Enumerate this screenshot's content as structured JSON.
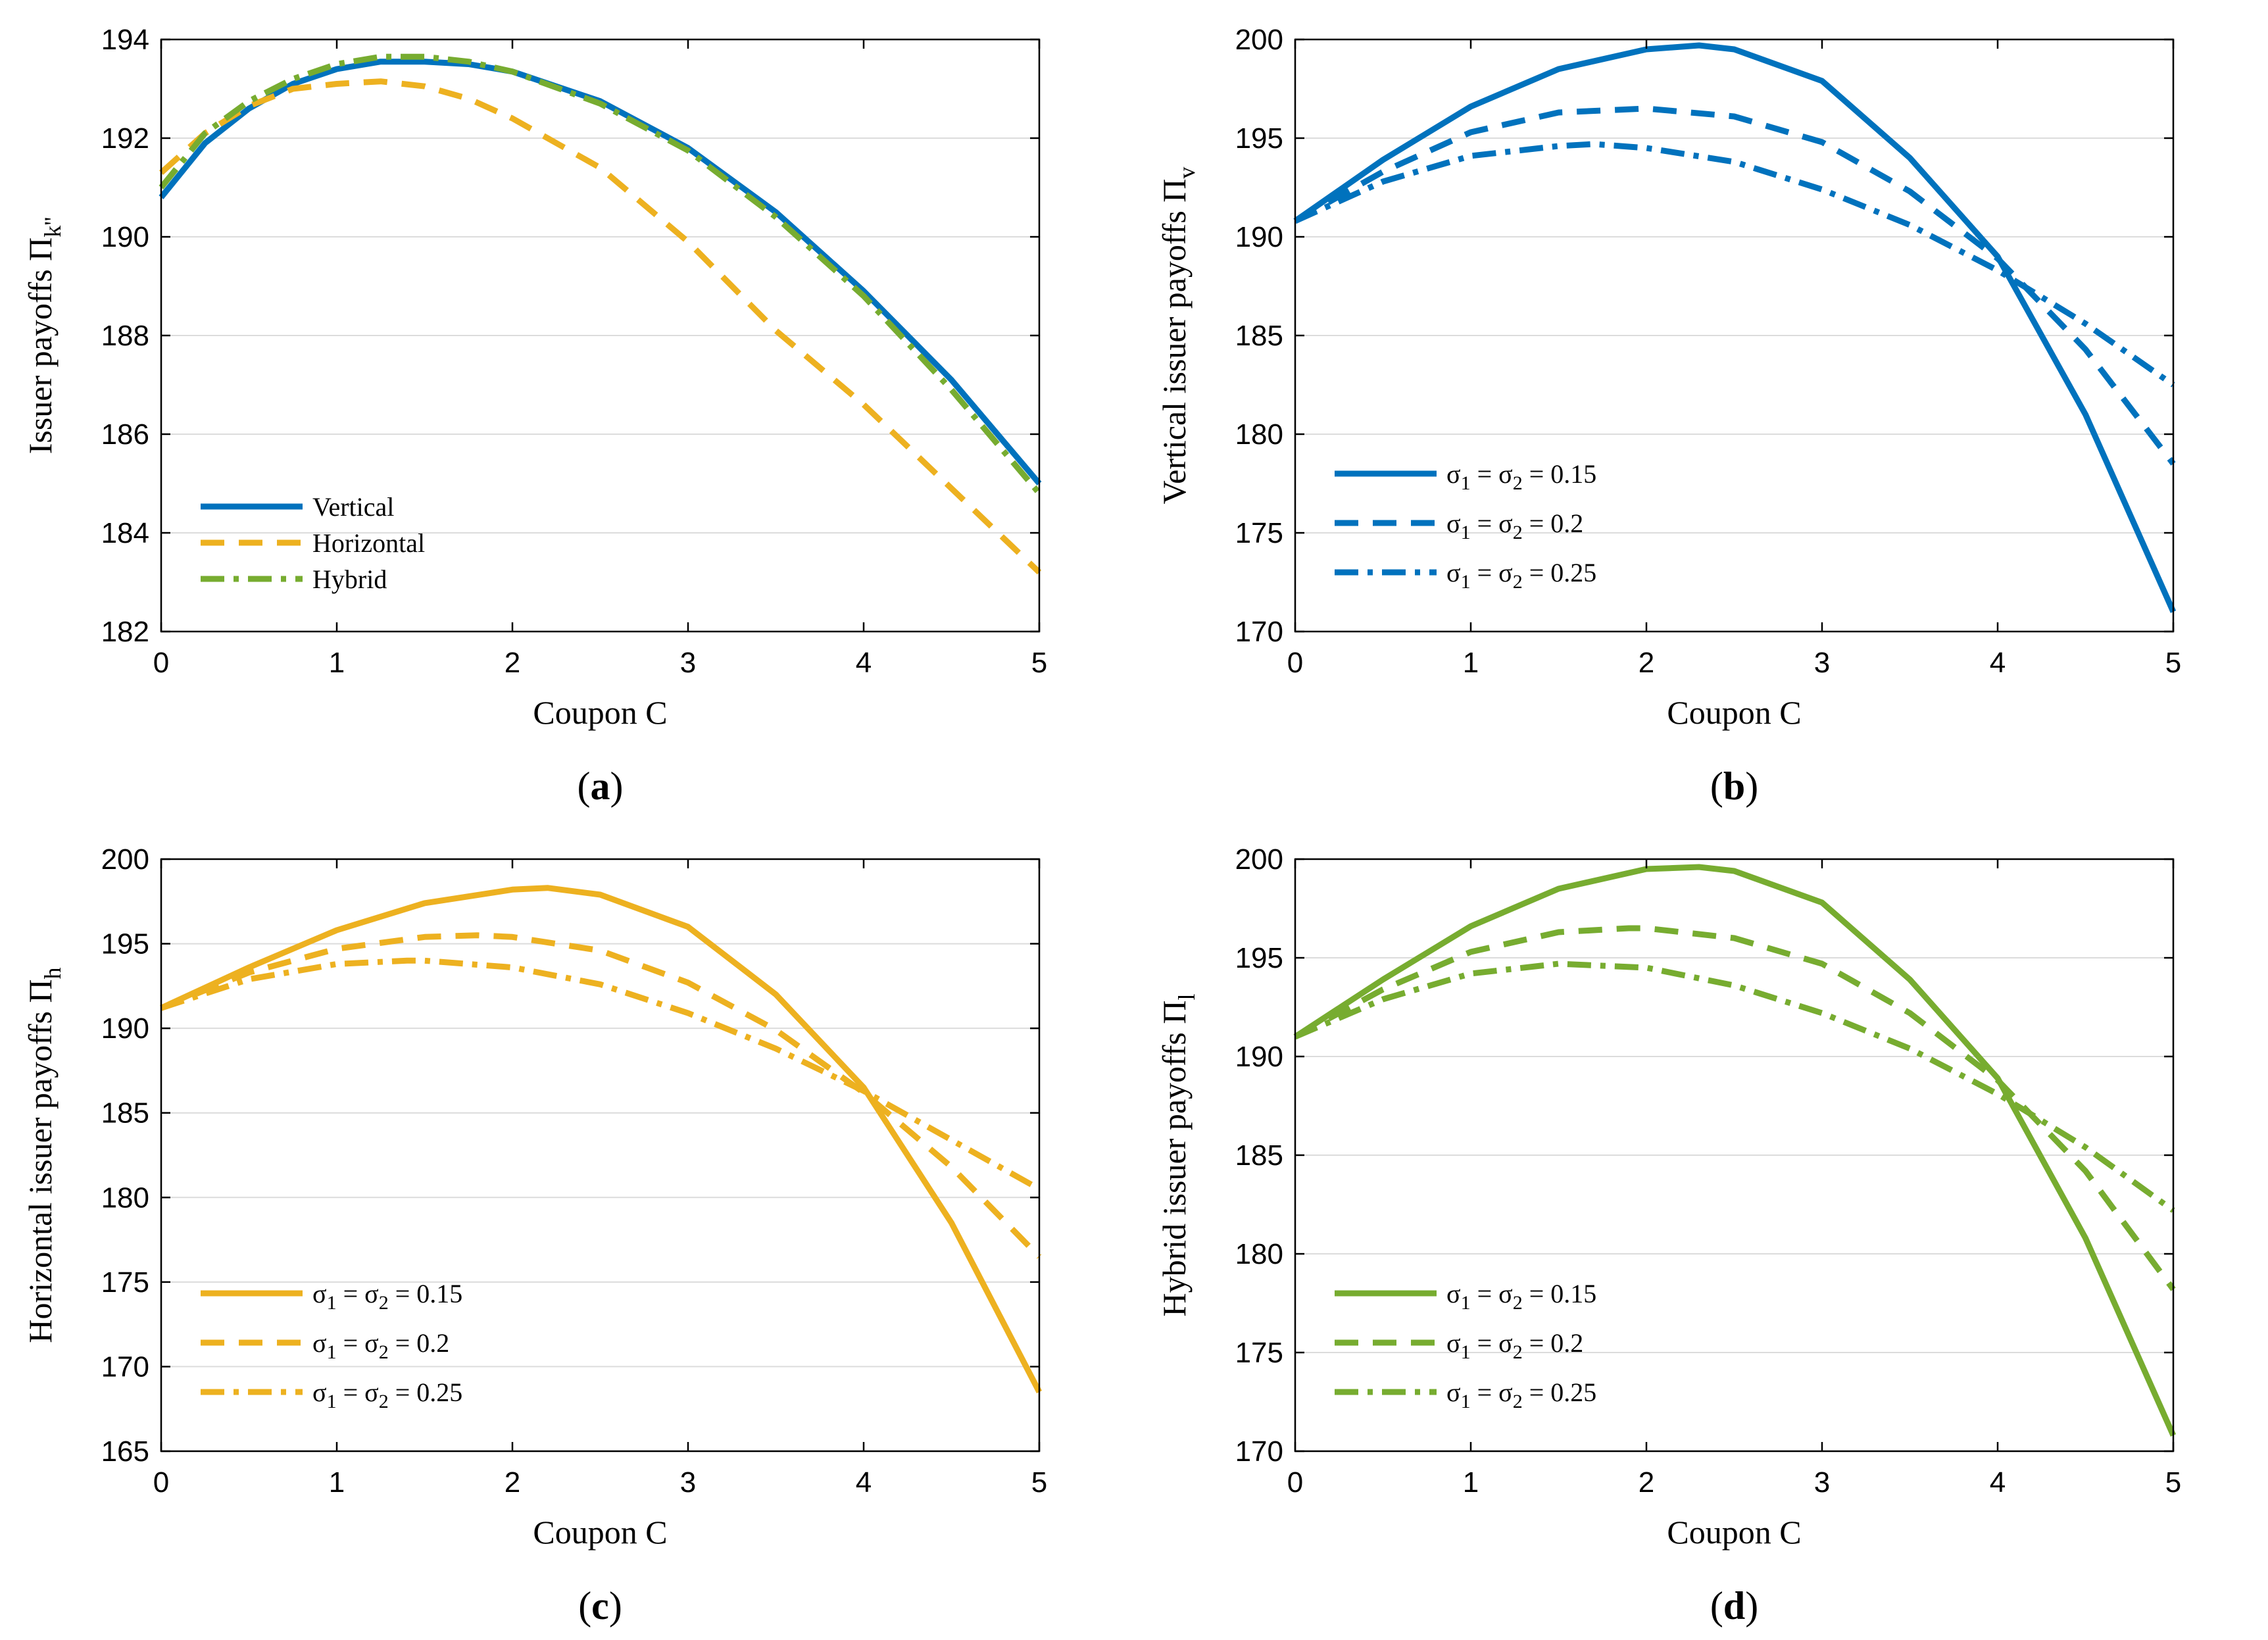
{
  "figure": {
    "colors": {
      "blue": "#0072BD",
      "yellow": "#EDB120",
      "green": "#77AC30",
      "grid": "#dcdcdc"
    }
  },
  "chart_data": [
    {
      "panel_label": "a",
      "type": "line",
      "xlabel": "Coupon  C",
      "ylabel": "Issuer  payoffs  Π",
      "ylabel_sub": "k''",
      "xlim": [
        0,
        5
      ],
      "ylim": [
        182,
        194
      ],
      "xticks": [
        0,
        1,
        2,
        3,
        4,
        5
      ],
      "yticks": [
        182,
        184,
        186,
        188,
        190,
        192,
        194
      ],
      "legend_position": "bottom-left",
      "series": [
        {
          "name": "Vertical",
          "color": "#0072BD",
          "dash": "solid",
          "x": [
            0,
            0.25,
            0.5,
            0.75,
            1,
            1.25,
            1.5,
            1.75,
            2,
            2.5,
            3,
            3.5,
            4,
            4.5,
            5
          ],
          "y": [
            190.8,
            191.9,
            192.6,
            193.1,
            193.4,
            193.55,
            193.55,
            193.5,
            193.35,
            192.75,
            191.8,
            190.5,
            188.9,
            187.1,
            185.0
          ]
        },
        {
          "name": "Horizontal",
          "color": "#EDB120",
          "dash": "dash",
          "x": [
            0,
            0.25,
            0.5,
            0.75,
            1,
            1.25,
            1.5,
            1.75,
            2,
            2.5,
            3,
            3.5,
            4,
            4.5,
            5
          ],
          "y": [
            191.3,
            192.1,
            192.65,
            193.0,
            193.1,
            193.15,
            193.05,
            192.8,
            192.4,
            191.4,
            189.9,
            188.1,
            186.6,
            184.9,
            183.2
          ]
        },
        {
          "name": "Hybrid",
          "color": "#77AC30",
          "dash": "dashdot",
          "x": [
            0,
            0.25,
            0.5,
            0.75,
            1,
            1.25,
            1.5,
            1.75,
            2,
            2.5,
            3,
            3.5,
            4,
            4.5,
            5
          ],
          "y": [
            191.0,
            192.1,
            192.75,
            193.2,
            193.5,
            193.65,
            193.65,
            193.55,
            193.35,
            192.7,
            191.75,
            190.4,
            188.8,
            186.9,
            184.8
          ]
        }
      ]
    },
    {
      "panel_label": "b",
      "type": "line",
      "xlabel": "Coupon  C",
      "ylabel": "Vertical  issuer  payoffs  Π",
      "ylabel_sub": "v",
      "xlim": [
        0,
        5
      ],
      "ylim": [
        170,
        200
      ],
      "xticks": [
        0,
        1,
        2,
        3,
        4,
        5
      ],
      "yticks": [
        170,
        175,
        180,
        185,
        190,
        195,
        200
      ],
      "legend_position": "bottom-left",
      "series": [
        {
          "name": "σ1 = σ2 = 0.15",
          "color": "#0072BD",
          "dash": "solid",
          "x": [
            0,
            0.5,
            1,
            1.5,
            2,
            2.3,
            2.5,
            3,
            3.5,
            4,
            4.5,
            5
          ],
          "y": [
            190.8,
            193.9,
            196.6,
            198.5,
            199.5,
            199.7,
            199.5,
            197.9,
            194.0,
            189.0,
            181.0,
            171.0
          ]
        },
        {
          "name": "σ1 = σ2 = 0.2",
          "color": "#0072BD",
          "dash": "dash",
          "x": [
            0,
            0.5,
            1,
            1.5,
            2,
            2.5,
            3,
            3.5,
            4,
            4.5,
            5
          ],
          "y": [
            190.8,
            193.3,
            195.3,
            196.3,
            196.5,
            196.1,
            194.8,
            192.3,
            188.9,
            184.3,
            178.5
          ]
        },
        {
          "name": "σ1 = σ2 = 0.25",
          "color": "#0072BD",
          "dash": "dashdot",
          "x": [
            0,
            0.5,
            1,
            1.5,
            1.7,
            2,
            2.5,
            3,
            3.5,
            4,
            4.5,
            5
          ],
          "y": [
            190.8,
            192.8,
            194.1,
            194.6,
            194.7,
            194.5,
            193.8,
            192.4,
            190.6,
            188.3,
            185.6,
            182.5
          ]
        }
      ]
    },
    {
      "panel_label": "c",
      "type": "line",
      "xlabel": "Coupon  C",
      "ylabel": "Horizontal  issuer  payoffs  Π",
      "ylabel_sub": "h",
      "xlim": [
        0,
        5
      ],
      "ylim": [
        165,
        200
      ],
      "xticks": [
        0,
        1,
        2,
        3,
        4,
        5
      ],
      "yticks": [
        165,
        170,
        175,
        180,
        185,
        190,
        195,
        200
      ],
      "legend_position": "bottom-left",
      "series": [
        {
          "name": "σ1 = σ2 = 0.15",
          "color": "#EDB120",
          "dash": "solid",
          "x": [
            0,
            0.5,
            1,
            1.5,
            2,
            2.2,
            2.5,
            3,
            3.5,
            4,
            4.5,
            5
          ],
          "y": [
            191.2,
            193.6,
            195.8,
            197.4,
            198.2,
            198.3,
            197.9,
            196.0,
            192.0,
            186.5,
            178.5,
            168.5
          ]
        },
        {
          "name": "σ1 = σ2 = 0.2",
          "color": "#EDB120",
          "dash": "dash",
          "x": [
            0,
            0.5,
            1,
            1.5,
            1.8,
            2,
            2.5,
            3,
            3.5,
            4,
            4.5,
            5
          ],
          "y": [
            191.2,
            193.3,
            194.7,
            195.4,
            195.5,
            195.4,
            194.6,
            192.7,
            189.9,
            186.2,
            181.8,
            176.5
          ]
        },
        {
          "name": "σ1 = σ2 = 0.25",
          "color": "#EDB120",
          "dash": "dashdot",
          "x": [
            0,
            0.5,
            1,
            1.4,
            1.5,
            2,
            2.5,
            3,
            3.5,
            4,
            4.5,
            5
          ],
          "y": [
            191.2,
            192.9,
            193.8,
            194.0,
            194.0,
            193.6,
            192.6,
            190.9,
            188.8,
            186.3,
            183.4,
            180.5
          ]
        }
      ]
    },
    {
      "panel_label": "d",
      "type": "line",
      "xlabel": "Coupon  C",
      "ylabel": "Hybrid  issuer  payoffs  Π",
      "ylabel_sub": "l",
      "xlim": [
        0,
        5
      ],
      "ylim": [
        170,
        200
      ],
      "xticks": [
        0,
        1,
        2,
        3,
        4,
        5
      ],
      "yticks": [
        170,
        175,
        180,
        185,
        190,
        195,
        200
      ],
      "legend_position": "bottom-left",
      "series": [
        {
          "name": "σ1 = σ2 = 0.15",
          "color": "#77AC30",
          "dash": "solid",
          "x": [
            0,
            0.5,
            1,
            1.5,
            2,
            2.3,
            2.5,
            3,
            3.5,
            4,
            4.5,
            5
          ],
          "y": [
            191.0,
            193.9,
            196.6,
            198.5,
            199.5,
            199.6,
            199.4,
            197.8,
            193.9,
            188.9,
            180.8,
            170.8
          ]
        },
        {
          "name": "σ1 = σ2 = 0.2",
          "color": "#77AC30",
          "dash": "dash",
          "x": [
            0,
            0.5,
            1,
            1.5,
            1.9,
            2,
            2.5,
            3,
            3.5,
            4,
            4.5,
            5
          ],
          "y": [
            191.0,
            193.4,
            195.3,
            196.3,
            196.5,
            196.5,
            196.0,
            194.7,
            192.2,
            188.8,
            184.2,
            178.2
          ]
        },
        {
          "name": "σ1 = σ2 = 0.25",
          "color": "#77AC30",
          "dash": "dashdot",
          "x": [
            0,
            0.5,
            1,
            1.5,
            2,
            2.5,
            3,
            3.5,
            4,
            4.5,
            5
          ],
          "y": [
            191.0,
            192.9,
            194.2,
            194.7,
            194.5,
            193.6,
            192.2,
            190.4,
            188.1,
            185.4,
            182.2
          ]
        }
      ]
    }
  ]
}
